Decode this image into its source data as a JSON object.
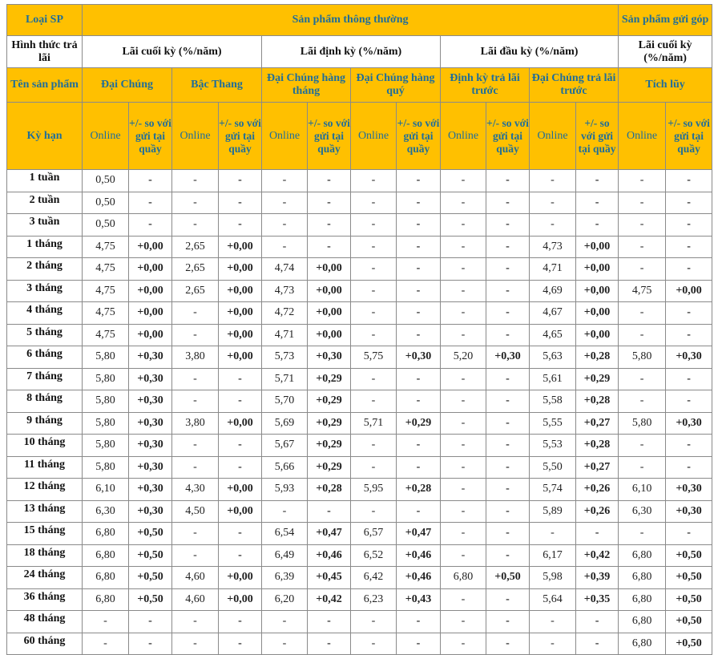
{
  "header": {
    "loai_sp": "Loại SP",
    "thong_thuong": "Sản phẩm thông thường",
    "gui_gop": "Sản phẩm gửi góp",
    "hinh_thuc": "Hình thức trả lãi",
    "lai_cuoi_ky": "Lãi cuối kỳ (%/năm)",
    "lai_dinh_ky": "Lãi định kỳ (%/năm)",
    "lai_dau_ky": "Lãi đầu kỳ (%/năm)",
    "lai_cuoi_ky_gg": "Lãi cuối kỳ (%/năm)",
    "ten_san_pham": "Tên sản phẩm",
    "products": [
      "Đại Chúng",
      "Bậc Thang",
      "Đại Chúng hàng tháng",
      "Đại Chúng hàng quý",
      "Định kỳ trả lãi trước",
      "Đại Chúng trả lãi trước",
      "Tích lũy"
    ],
    "ky_han": "Kỳ hạn",
    "online": "Online",
    "diff": "+/- so với gửi tại quầy"
  },
  "rows": [
    {
      "term": "1 tuần",
      "values": [
        "0,50",
        "-",
        "-",
        "-",
        "-",
        "-",
        "-",
        "-",
        "-",
        "-",
        "-",
        "-",
        "-",
        "-"
      ]
    },
    {
      "term": "2 tuần",
      "values": [
        "0,50",
        "-",
        "-",
        "-",
        "-",
        "-",
        "-",
        "-",
        "-",
        "-",
        "-",
        "-",
        "-",
        "-"
      ]
    },
    {
      "term": "3 tuần",
      "values": [
        "0,50",
        "-",
        "-",
        "-",
        "-",
        "-",
        "-",
        "-",
        "-",
        "-",
        "-",
        "-",
        "-",
        "-"
      ]
    },
    {
      "term": "1 tháng",
      "values": [
        "4,75",
        "+0,00",
        "2,65",
        "+0,00",
        "-",
        "-",
        "-",
        "-",
        "-",
        "-",
        "4,73",
        "+0,00",
        "-",
        "-"
      ]
    },
    {
      "term": "2 tháng",
      "values": [
        "4,75",
        "+0,00",
        "2,65",
        "+0,00",
        "4,74",
        "+0,00",
        "-",
        "-",
        "-",
        "-",
        "4,71",
        "+0,00",
        "-",
        "-"
      ]
    },
    {
      "term": "3 tháng",
      "values": [
        "4,75",
        "+0,00",
        "2,65",
        "+0,00",
        "4,73",
        "+0,00",
        "-",
        "-",
        "-",
        "-",
        "4,69",
        "+0,00",
        "4,75",
        "+0,00"
      ]
    },
    {
      "term": "4 tháng",
      "values": [
        "4,75",
        "+0,00",
        "-",
        "+0,00",
        "4,72",
        "+0,00",
        "-",
        "-",
        "-",
        "-",
        "4,67",
        "+0,00",
        "-",
        "-"
      ]
    },
    {
      "term": "5 tháng",
      "values": [
        "4,75",
        "+0,00",
        "-",
        "+0,00",
        "4,71",
        "+0,00",
        "-",
        "-",
        "-",
        "-",
        "4,65",
        "+0,00",
        "-",
        "-"
      ]
    },
    {
      "term": "6 tháng",
      "values": [
        "5,80",
        "+0,30",
        "3,80",
        "+0,00",
        "5,73",
        "+0,30",
        "5,75",
        "+0,30",
        "5,20",
        "+0,30",
        "5,63",
        "+0,28",
        "5,80",
        "+0,30"
      ]
    },
    {
      "term": "7 tháng",
      "values": [
        "5,80",
        "+0,30",
        "-",
        "-",
        "5,71",
        "+0,29",
        "-",
        "-",
        "-",
        "-",
        "5,61",
        "+0,29",
        "-",
        "-"
      ]
    },
    {
      "term": "8 tháng",
      "values": [
        "5,80",
        "+0,30",
        "-",
        "-",
        "5,70",
        "+0,29",
        "-",
        "-",
        "-",
        "-",
        "5,58",
        "+0,28",
        "-",
        "-"
      ]
    },
    {
      "term": "9 tháng",
      "values": [
        "5,80",
        "+0,30",
        "3,80",
        "+0,00",
        "5,69",
        "+0,29",
        "5,71",
        "+0,29",
        "-",
        "-",
        "5,55",
        "+0,27",
        "5,80",
        "+0,30"
      ]
    },
    {
      "term": "10 tháng",
      "values": [
        "5,80",
        "+0,30",
        "-",
        "-",
        "5,67",
        "+0,29",
        "-",
        "-",
        "-",
        "-",
        "5,53",
        "+0,28",
        "-",
        "-"
      ]
    },
    {
      "term": "11 tháng",
      "values": [
        "5,80",
        "+0,30",
        "-",
        "-",
        "5,66",
        "+0,29",
        "-",
        "-",
        "-",
        "-",
        "5,50",
        "+0,27",
        "-",
        "-"
      ]
    },
    {
      "term": "12 tháng",
      "values": [
        "6,10",
        "+0,30",
        "4,30",
        "+0,00",
        "5,93",
        "+0,28",
        "5,95",
        "+0,28",
        "-",
        "-",
        "5,74",
        "+0,26",
        "6,10",
        "+0,30"
      ]
    },
    {
      "term": "13 tháng",
      "values": [
        "6,30",
        "+0,30",
        "4,50",
        "+0,00",
        "-",
        "-",
        "-",
        "-",
        "-",
        "-",
        "5,89",
        "+0,26",
        "6,30",
        "+0,30"
      ]
    },
    {
      "term": "15 tháng",
      "values": [
        "6,80",
        "+0,50",
        "-",
        "-",
        "6,54",
        "+0,47",
        "6,57",
        "+0,47",
        "-",
        "-",
        "-",
        "-",
        "-",
        "-"
      ]
    },
    {
      "term": "18 tháng",
      "values": [
        "6,80",
        "+0,50",
        "-",
        "-",
        "6,49",
        "+0,46",
        "6,52",
        "+0,46",
        "-",
        "-",
        "6,17",
        "+0,42",
        "6,80",
        "+0,50"
      ]
    },
    {
      "term": "24 tháng",
      "values": [
        "6,80",
        "+0,50",
        "4,60",
        "+0,00",
        "6,39",
        "+0,45",
        "6,42",
        "+0,46",
        "6,80",
        "+0,50",
        "5,98",
        "+0,39",
        "6,80",
        "+0,50"
      ]
    },
    {
      "term": "36 tháng",
      "values": [
        "6,80",
        "+0,50",
        "4,60",
        "+0,00",
        "6,20",
        "+0,42",
        "6,23",
        "+0,43",
        "-",
        "-",
        "5,64",
        "+0,35",
        "6,80",
        "+0,50"
      ]
    },
    {
      "term": "48 tháng",
      "values": [
        "-",
        "-",
        "-",
        "-",
        "-",
        "-",
        "-",
        "-",
        "-",
        "-",
        "-",
        "-",
        "6,80",
        "+0,50"
      ]
    },
    {
      "term": "60 tháng",
      "values": [
        "-",
        "-",
        "-",
        "-",
        "-",
        "-",
        "-",
        "-",
        "-",
        "-",
        "-",
        "-",
        "6,80",
        "+0,50"
      ]
    }
  ]
}
